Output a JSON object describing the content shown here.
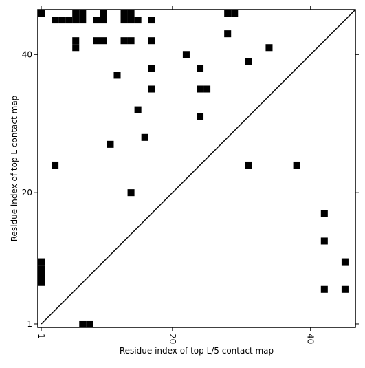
{
  "chart_data": {
    "type": "scatter",
    "marker": "square",
    "color": "#000000",
    "x_label": "Residue index of top L/5 contact map",
    "y_label": "Residue index of top L contact map",
    "x": [
      1,
      6,
      7,
      10,
      13,
      14,
      28,
      29,
      3,
      4,
      5,
      6,
      7,
      9,
      10,
      13,
      14,
      15,
      17,
      28,
      6,
      9,
      10,
      13,
      14,
      17,
      6,
      34,
      22,
      31,
      17,
      24,
      12,
      17,
      24,
      25,
      15,
      24,
      16,
      11,
      3,
      31,
      38,
      14,
      42,
      42,
      1,
      45,
      1,
      1,
      1,
      42,
      45,
      7,
      8
    ],
    "y": [
      46,
      46,
      46,
      46,
      46,
      46,
      46,
      46,
      45,
      45,
      45,
      45,
      45,
      45,
      45,
      45,
      45,
      45,
      45,
      43,
      42,
      42,
      42,
      42,
      42,
      42,
      41,
      41,
      40,
      39,
      38,
      38,
      37,
      35,
      35,
      35,
      32,
      31,
      28,
      27,
      24,
      24,
      24,
      20,
      17,
      13,
      10,
      10,
      9,
      8,
      7,
      6,
      6,
      1,
      1
    ],
    "xlim": [
      0.5,
      46.5
    ],
    "ylim": [
      0.5,
      46.5
    ],
    "xticks": [
      1,
      20,
      40
    ],
    "yticks": [
      1,
      20,
      40
    ]
  }
}
